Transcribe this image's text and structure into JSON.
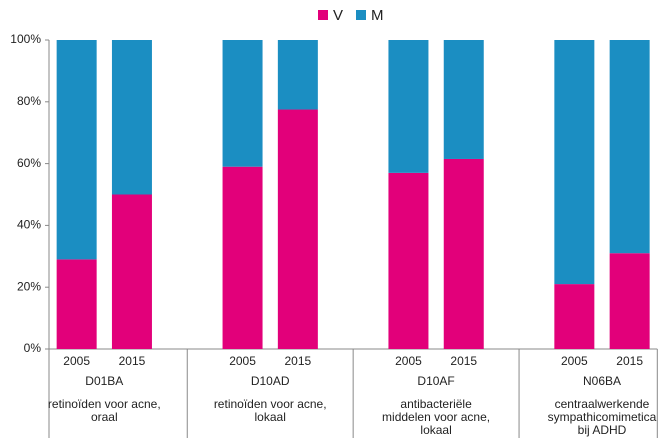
{
  "chart_data": {
    "type": "stacked-bar",
    "categories": [
      "2005",
      "2015",
      "2005",
      "2015",
      "2005",
      "2015",
      "2005",
      "2015"
    ],
    "groups": [
      {
        "code": "D01BA",
        "description": [
          "retinoïden voor acne,",
          "oraal"
        ]
      },
      {
        "code": "D10AD",
        "description": [
          "retinoïden voor acne,",
          "lokaal"
        ]
      },
      {
        "code": "D10AF",
        "description": [
          "antibacteriële",
          "middelen voor acne,",
          "lokaal"
        ]
      },
      {
        "code": "N06BA",
        "description": [
          "centraalwerkende",
          "sympathicomimetica",
          "bij ADHD"
        ]
      }
    ],
    "series": [
      {
        "name": "V",
        "color": "#e2007a",
        "values": [
          29,
          50,
          59,
          77.5,
          57,
          61.5,
          21,
          31
        ]
      },
      {
        "name": "M",
        "color": "#1b8ec2",
        "values": [
          71,
          50,
          41,
          22.5,
          43,
          38.5,
          79,
          69
        ]
      }
    ],
    "ylim": [
      0,
      100
    ],
    "yticks": [
      {
        "value": 0,
        "label": "0%"
      },
      {
        "value": 20,
        "label": "20%"
      },
      {
        "value": 40,
        "label": "40%"
      },
      {
        "value": 60,
        "label": "60%"
      },
      {
        "value": 80,
        "label": "80%"
      },
      {
        "value": 100,
        "label": "100%"
      }
    ],
    "legend": "top"
  }
}
